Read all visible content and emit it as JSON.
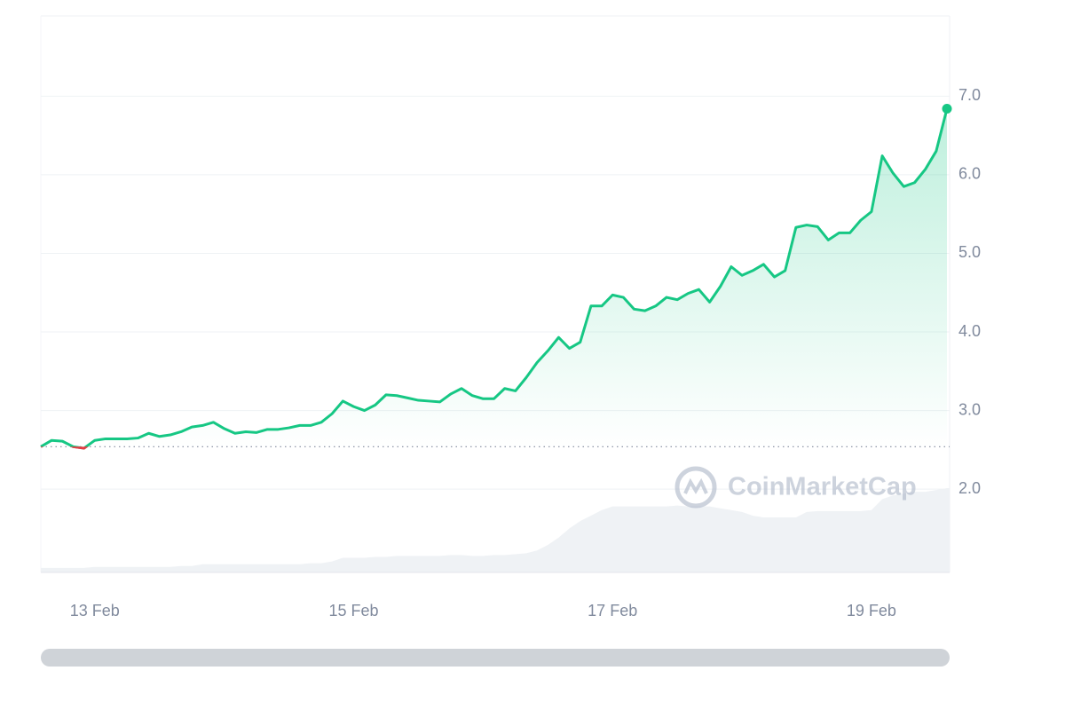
{
  "chart_data": {
    "type": "line",
    "watermark": "CoinMarketCap",
    "categories": [
      null,
      null,
      null,
      null,
      null,
      "13 Feb",
      null,
      null,
      null,
      null,
      null,
      null,
      null,
      null,
      null,
      null,
      null,
      null,
      null,
      null,
      null,
      null,
      null,
      null,
      null,
      null,
      null,
      null,
      null,
      "15 Feb",
      null,
      null,
      null,
      null,
      null,
      null,
      null,
      null,
      null,
      null,
      null,
      null,
      null,
      null,
      null,
      null,
      null,
      null,
      null,
      null,
      null,
      null,
      null,
      "17 Feb",
      null,
      null,
      null,
      null,
      null,
      null,
      null,
      null,
      null,
      null,
      null,
      null,
      null,
      null,
      null,
      null,
      null,
      null,
      null,
      null,
      null,
      null,
      null,
      "19 Feb",
      null,
      null,
      null,
      null,
      null,
      null,
      null
    ],
    "series": [
      {
        "color": "#16c784",
        "below_color": "#ea3943",
        "values": [
          2.54,
          2.62,
          2.61,
          2.54,
          2.52,
          2.62,
          2.64,
          2.64,
          2.64,
          2.65,
          2.71,
          2.67,
          2.69,
          2.73,
          2.79,
          2.81,
          2.85,
          2.77,
          2.71,
          2.73,
          2.72,
          2.76,
          2.76,
          2.78,
          2.81,
          2.81,
          2.85,
          2.96,
          3.12,
          3.05,
          3.0,
          3.07,
          3.2,
          3.19,
          3.16,
          3.13,
          3.12,
          3.11,
          3.21,
          3.28,
          3.19,
          3.15,
          3.15,
          3.28,
          3.25,
          3.42,
          3.61,
          3.76,
          3.93,
          3.79,
          3.87,
          4.33,
          4.33,
          4.47,
          4.44,
          4.29,
          4.27,
          4.33,
          4.44,
          4.41,
          4.49,
          4.54,
          4.38,
          4.58,
          4.83,
          4.72,
          4.78,
          4.86,
          4.7,
          4.78,
          5.33,
          5.36,
          5.34,
          5.17,
          5.26,
          5.26,
          5.42,
          5.53,
          6.24,
          6.02,
          5.85,
          5.9,
          6.07,
          6.3,
          6.84
        ]
      }
    ],
    "volume": {
      "color": "#eff2f5",
      "values": [
        5,
        5,
        5,
        5,
        5,
        6,
        6,
        6,
        6,
        6,
        6,
        6,
        6,
        7,
        7,
        9,
        9,
        9,
        9,
        9,
        9,
        9,
        9,
        9,
        9,
        10,
        10,
        12,
        16,
        16,
        16,
        17,
        17,
        18,
        18,
        18,
        18,
        18,
        19,
        19,
        18,
        18,
        19,
        19,
        20,
        21,
        24,
        30,
        38,
        48,
        56,
        62,
        68,
        72,
        72,
        72,
        72,
        72,
        72,
        73,
        72,
        72,
        72,
        70,
        68,
        66,
        62,
        60,
        60,
        60,
        60,
        66,
        67,
        67,
        67,
        67,
        67,
        68,
        80,
        84,
        86,
        88,
        88,
        90,
        92
      ]
    },
    "reference": 2.54,
    "ylim": [
      0.94,
      8.02
    ],
    "yticks": [
      {
        "value": 2,
        "label": "2.0"
      },
      {
        "value": 3,
        "label": "3.0"
      },
      {
        "value": 4,
        "label": "4.0"
      },
      {
        "value": 5,
        "label": "5.0"
      },
      {
        "value": 6,
        "label": "6.0"
      },
      {
        "value": 7,
        "label": "7.0"
      }
    ],
    "grid": true
  }
}
